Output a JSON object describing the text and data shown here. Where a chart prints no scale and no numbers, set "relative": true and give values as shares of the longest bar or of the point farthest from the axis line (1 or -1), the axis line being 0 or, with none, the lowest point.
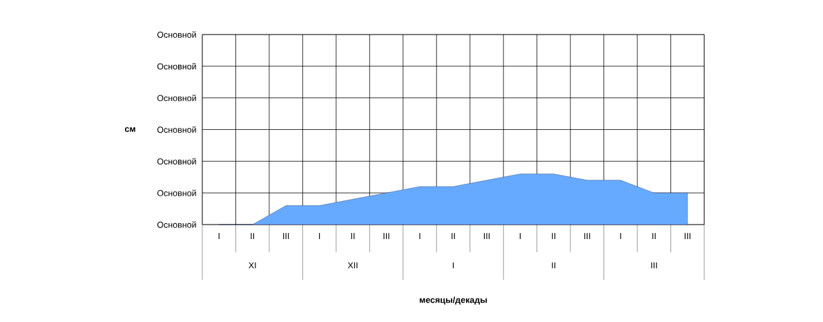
{
  "chart_data": {
    "type": "area",
    "relative": true,
    "categories": [
      "I",
      "II",
      "III",
      "I",
      "II",
      "III",
      "I",
      "II",
      "III",
      "I",
      "II",
      "III",
      "I",
      "II",
      "III"
    ],
    "values": [
      0,
      0,
      0.375,
      0.375,
      0.5,
      0.625,
      0.75,
      0.75,
      0.875,
      1,
      1,
      0.875,
      0.875,
      0.625,
      0.625
    ],
    "color": "#66aaff",
    "grid": true,
    "annotations": [
      "см",
      "Основной",
      "Основной",
      "Основной",
      "Основной",
      "Основной",
      "Основной",
      "Основной",
      "XI",
      "XII",
      "I",
      "II",
      "III",
      "месяцы/декады"
    ]
  }
}
